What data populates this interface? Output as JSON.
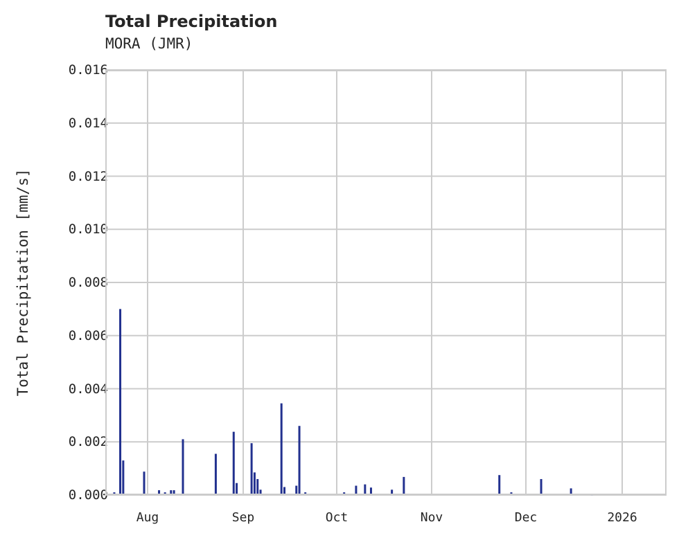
{
  "chart_data": {
    "type": "bar",
    "title": "Total Precipitation",
    "subtitle": "MORA (JMR)",
    "xlabel": "",
    "ylabel": "Total Precipitation [mm/s]",
    "ylim": [
      0,
      0.016
    ],
    "yticks": [
      "0.000",
      "0.002",
      "0.004",
      "0.006",
      "0.008",
      "0.010",
      "0.012",
      "0.014",
      "0.016"
    ],
    "xticks": [
      "Aug",
      "Sep",
      "Oct",
      "Nov",
      "Dec",
      "2026"
    ],
    "grid": true,
    "legend": null,
    "color": "#22318f",
    "x": [
      "2025-07-20",
      "2025-07-22",
      "2025-07-23",
      "2025-07-29",
      "2025-07-30",
      "2025-08-04",
      "2025-08-06",
      "2025-08-08",
      "2025-08-09",
      "2025-08-12",
      "2025-08-23",
      "2025-08-29",
      "2025-08-30",
      "2025-09-04",
      "2025-09-05",
      "2025-09-06",
      "2025-09-07",
      "2025-09-14",
      "2025-09-15",
      "2025-09-19",
      "2025-09-20",
      "2025-09-22",
      "2025-10-05",
      "2025-10-09",
      "2025-10-12",
      "2025-10-14",
      "2025-10-21",
      "2025-10-25",
      "2025-11-26",
      "2025-11-30",
      "2025-12-10",
      "2025-12-20",
      "2025-12-27"
    ],
    "values": [
      0.0001,
      0.007,
      0.0013,
      5e-05,
      0.00088,
      0.00018,
      0.0001,
      0.00018,
      0.00018,
      0.0021,
      0.00155,
      0.00238,
      0.00045,
      0.00195,
      0.00085,
      0.0006,
      0.0002,
      0.00345,
      0.0003,
      0.00035,
      0.0026,
      0.0001,
      0.0001,
      0.00035,
      0.0004,
      0.00028,
      0.0002,
      0.00068,
      0.00075,
      0.0001,
      0.0006,
      0.00025,
      5e-05
    ]
  },
  "header": {
    "title": "Total Precipitation",
    "subtitle": "MORA (JMR)"
  }
}
